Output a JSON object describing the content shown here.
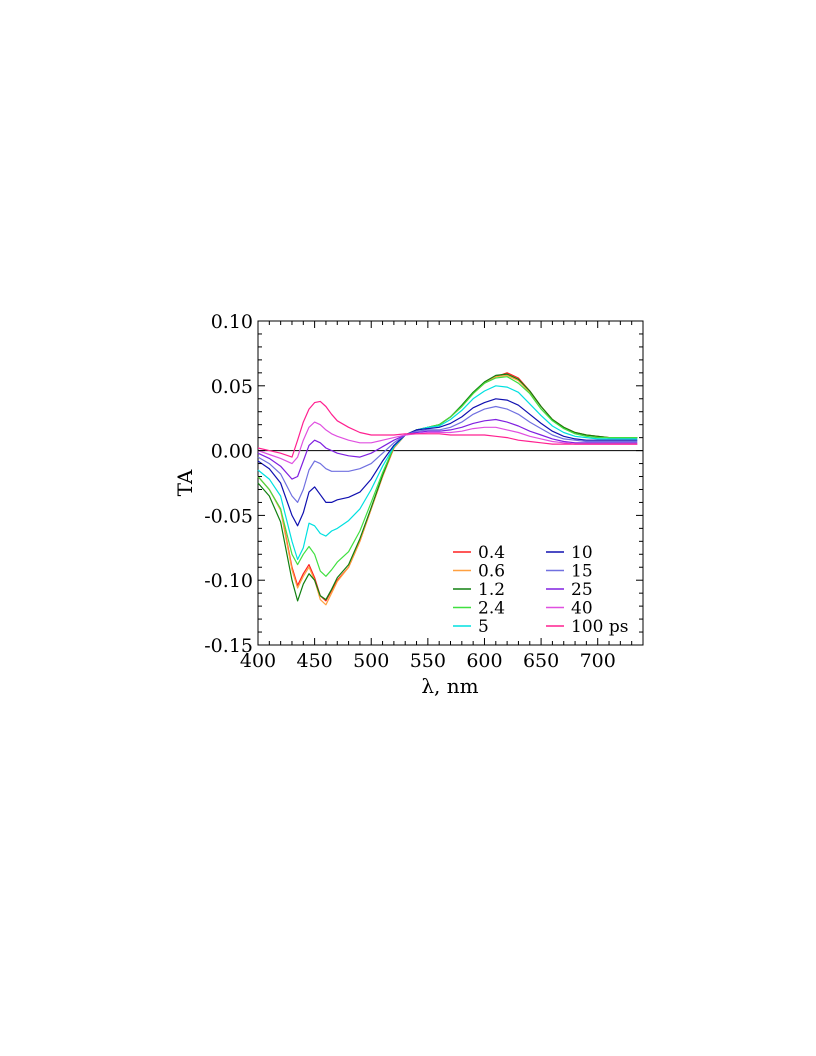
{
  "chart_data": {
    "type": "line",
    "title": "",
    "xlabel": "λ, nm",
    "ylabel": "TA",
    "xlim": [
      400,
      740
    ],
    "ylim": [
      -0.15,
      0.1
    ],
    "x_ticks": [
      400,
      450,
      500,
      550,
      600,
      650,
      700
    ],
    "y_ticks": [
      -0.15,
      -0.1,
      -0.05,
      0.0,
      0.05,
      0.1
    ],
    "x_tick_labels": [
      "400",
      "450",
      "500",
      "550",
      "600",
      "650",
      "700"
    ],
    "y_tick_labels": [
      "-0.15",
      "-0.10",
      "-0.05",
      "0.00",
      "0.05",
      "0.10"
    ],
    "zero_line": 0,
    "grid": false,
    "legend_position": "bottom-right",
    "x": [
      400,
      410,
      420,
      430,
      435,
      440,
      445,
      450,
      455,
      460,
      465,
      470,
      480,
      490,
      500,
      510,
      520,
      530,
      540,
      550,
      560,
      570,
      580,
      590,
      600,
      610,
      620,
      630,
      640,
      650,
      660,
      670,
      680,
      690,
      700,
      710,
      720,
      735
    ],
    "series": [
      {
        "name": "0.4",
        "color": "#ff2020",
        "values": [
          -0.02,
          -0.03,
          -0.045,
          -0.09,
          -0.104,
          -0.095,
          -0.088,
          -0.098,
          -0.112,
          -0.116,
          -0.108,
          -0.1,
          -0.09,
          -0.07,
          -0.045,
          -0.02,
          0.002,
          0.012,
          0.016,
          0.018,
          0.02,
          0.026,
          0.034,
          0.044,
          0.052,
          0.057,
          0.06,
          0.056,
          0.046,
          0.034,
          0.024,
          0.018,
          0.014,
          0.012,
          0.011,
          0.01,
          0.01,
          0.01
        ]
      },
      {
        "name": "0.6",
        "color": "#ffa040",
        "values": [
          -0.02,
          -0.03,
          -0.046,
          -0.092,
          -0.106,
          -0.097,
          -0.09,
          -0.1,
          -0.115,
          -0.119,
          -0.11,
          -0.101,
          -0.09,
          -0.07,
          -0.045,
          -0.02,
          0.002,
          0.012,
          0.016,
          0.018,
          0.02,
          0.026,
          0.034,
          0.044,
          0.052,
          0.057,
          0.058,
          0.054,
          0.045,
          0.034,
          0.024,
          0.018,
          0.014,
          0.012,
          0.011,
          0.01,
          0.01,
          0.01
        ]
      },
      {
        "name": "1.2",
        "color": "#108010",
        "values": [
          -0.025,
          -0.035,
          -0.055,
          -0.1,
          -0.116,
          -0.103,
          -0.095,
          -0.1,
          -0.112,
          -0.115,
          -0.107,
          -0.098,
          -0.088,
          -0.068,
          -0.044,
          -0.019,
          0.003,
          0.012,
          0.016,
          0.018,
          0.02,
          0.026,
          0.035,
          0.045,
          0.053,
          0.058,
          0.059,
          0.055,
          0.046,
          0.034,
          0.024,
          0.018,
          0.014,
          0.012,
          0.011,
          0.01,
          0.01,
          0.01
        ]
      },
      {
        "name": "2.4",
        "color": "#40e040",
        "values": [
          -0.02,
          -0.03,
          -0.045,
          -0.08,
          -0.088,
          -0.08,
          -0.074,
          -0.08,
          -0.093,
          -0.097,
          -0.092,
          -0.086,
          -0.078,
          -0.062,
          -0.04,
          -0.017,
          0.003,
          0.012,
          0.016,
          0.018,
          0.02,
          0.026,
          0.034,
          0.044,
          0.052,
          0.056,
          0.057,
          0.052,
          0.044,
          0.032,
          0.023,
          0.017,
          0.013,
          0.011,
          0.01,
          0.01,
          0.01,
          0.01
        ]
      },
      {
        "name": "5",
        "color": "#00e0e0",
        "values": [
          -0.015,
          -0.022,
          -0.035,
          -0.07,
          -0.084,
          -0.075,
          -0.056,
          -0.058,
          -0.064,
          -0.066,
          -0.062,
          -0.06,
          -0.054,
          -0.045,
          -0.03,
          -0.012,
          0.003,
          0.012,
          0.016,
          0.018,
          0.019,
          0.024,
          0.031,
          0.04,
          0.046,
          0.05,
          0.049,
          0.045,
          0.036,
          0.027,
          0.019,
          0.014,
          0.011,
          0.01,
          0.009,
          0.009,
          0.009,
          0.009
        ]
      },
      {
        "name": "10",
        "color": "#1010b0",
        "values": [
          -0.008,
          -0.014,
          -0.025,
          -0.05,
          -0.058,
          -0.048,
          -0.032,
          -0.028,
          -0.034,
          -0.04,
          -0.04,
          -0.038,
          -0.036,
          -0.032,
          -0.022,
          -0.008,
          0.004,
          0.012,
          0.016,
          0.017,
          0.018,
          0.021,
          0.026,
          0.033,
          0.037,
          0.04,
          0.039,
          0.035,
          0.028,
          0.021,
          0.015,
          0.011,
          0.009,
          0.008,
          0.008,
          0.008,
          0.008,
          0.008
        ]
      },
      {
        "name": "15",
        "color": "#7070e0",
        "values": [
          -0.005,
          -0.01,
          -0.018,
          -0.035,
          -0.04,
          -0.03,
          -0.015,
          -0.008,
          -0.01,
          -0.014,
          -0.016,
          -0.016,
          -0.016,
          -0.014,
          -0.01,
          -0.002,
          0.006,
          0.012,
          0.015,
          0.016,
          0.016,
          0.018,
          0.022,
          0.028,
          0.032,
          0.034,
          0.032,
          0.028,
          0.022,
          0.017,
          0.012,
          0.009,
          0.008,
          0.007,
          0.007,
          0.007,
          0.007,
          0.007
        ]
      },
      {
        "name": "25",
        "color": "#8020e0",
        "values": [
          -0.002,
          -0.006,
          -0.012,
          -0.022,
          -0.02,
          -0.008,
          0.004,
          0.008,
          0.006,
          0.002,
          0.0,
          -0.002,
          -0.004,
          -0.005,
          -0.002,
          0.003,
          0.008,
          0.012,
          0.014,
          0.015,
          0.015,
          0.016,
          0.018,
          0.021,
          0.023,
          0.024,
          0.022,
          0.019,
          0.015,
          0.012,
          0.009,
          0.007,
          0.006,
          0.006,
          0.006,
          0.006,
          0.006,
          0.006
        ]
      },
      {
        "name": "40",
        "color": "#e050e0",
        "values": [
          0.0,
          -0.003,
          -0.006,
          -0.01,
          -0.005,
          0.008,
          0.018,
          0.022,
          0.02,
          0.016,
          0.013,
          0.011,
          0.008,
          0.006,
          0.006,
          0.008,
          0.01,
          0.012,
          0.013,
          0.014,
          0.014,
          0.014,
          0.015,
          0.017,
          0.018,
          0.018,
          0.016,
          0.014,
          0.011,
          0.009,
          0.007,
          0.006,
          0.005,
          0.005,
          0.005,
          0.005,
          0.005,
          0.005
        ]
      },
      {
        "name": "100 ps",
        "color": "#ff2090",
        "values": [
          0.002,
          0.0,
          -0.002,
          -0.005,
          0.008,
          0.022,
          0.032,
          0.037,
          0.038,
          0.034,
          0.028,
          0.023,
          0.018,
          0.014,
          0.012,
          0.012,
          0.012,
          0.013,
          0.013,
          0.013,
          0.013,
          0.012,
          0.012,
          0.012,
          0.012,
          0.011,
          0.01,
          0.008,
          0.007,
          0.006,
          0.005,
          0.005,
          0.005,
          0.005,
          0.005,
          0.005,
          0.005,
          0.005
        ]
      }
    ]
  }
}
